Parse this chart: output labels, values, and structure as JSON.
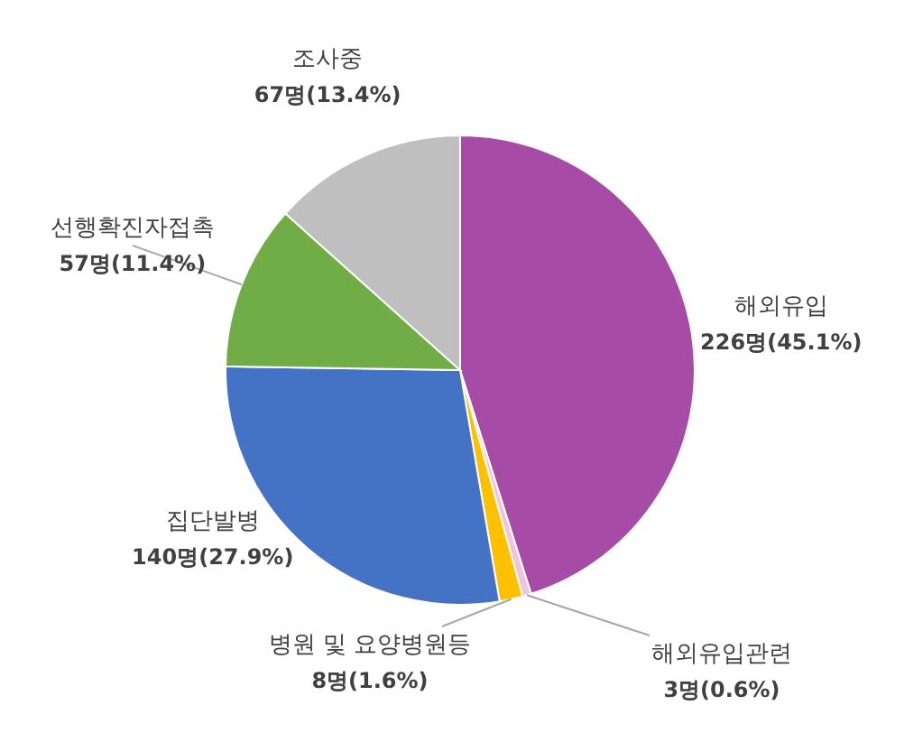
{
  "chart_data": {
    "type": "pie",
    "categories": [
      "해외유입",
      "해외유입관련",
      "병원 및 요양병원등",
      "집단발병",
      "선행확진자접촉",
      "조사중"
    ],
    "values": [
      226,
      3,
      8,
      140,
      57,
      67
    ],
    "colors": [
      "#a64ca6",
      "#f2c4dc",
      "#ffc000",
      "#4472c4",
      "#70ad47",
      "#bfbfbf"
    ],
    "value_labels": [
      "226명(45.1%)",
      "3명(0.6%)",
      "8명(1.6%)",
      "140명(27.9%)",
      "57명(11.4%)",
      "67명(13.4%)"
    ]
  }
}
